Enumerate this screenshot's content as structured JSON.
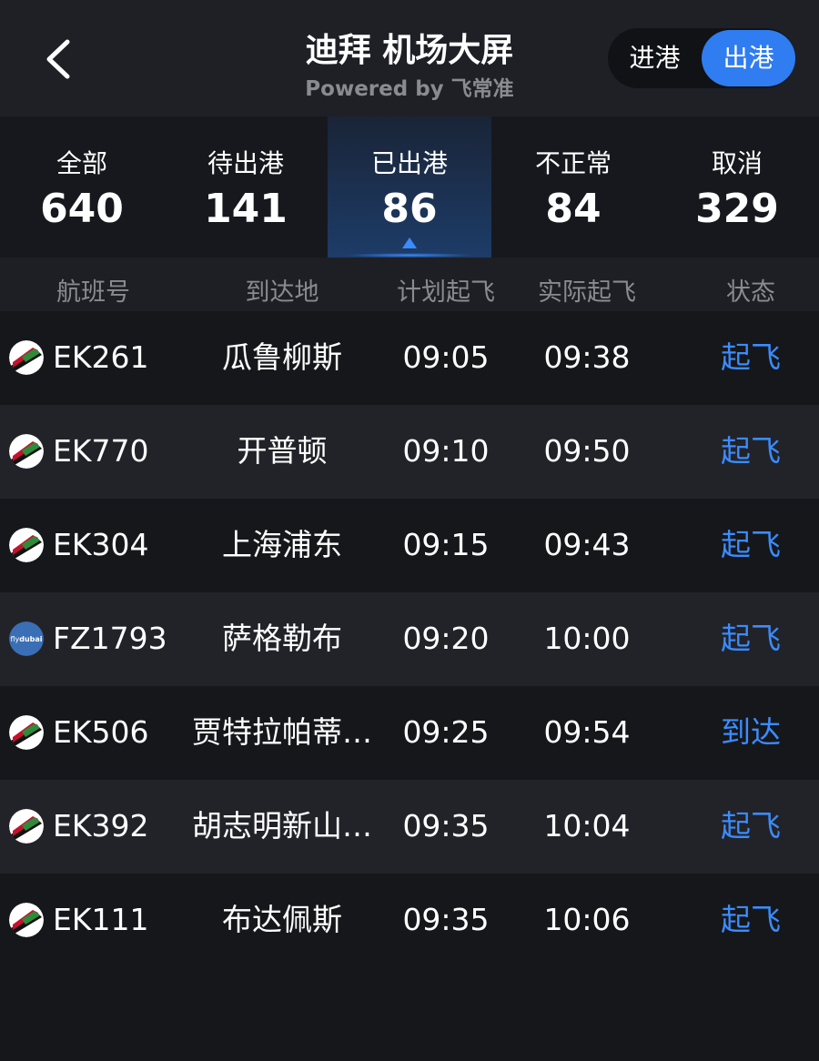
{
  "header": {
    "title": "迪拜 机场大屏",
    "subtitle": "Powered by 飞常准",
    "back_icon": "chevron-left-icon",
    "toggle": [
      "进港",
      "出港"
    ],
    "toggle_selected": "出港",
    "accent": "#2f7df0"
  },
  "stats": [
    {
      "label": "全部",
      "count": "640"
    },
    {
      "label": "待出港",
      "count": "141"
    },
    {
      "label": "已出港",
      "count": "86",
      "selected": true
    },
    {
      "label": "不正常",
      "count": "84"
    },
    {
      "label": "取消",
      "count": "329"
    }
  ],
  "columns": [
    "航班号",
    "到达地",
    "计划起飞",
    "实际起飞",
    "状态"
  ],
  "flights": [
    {
      "airline": "emirates",
      "flight": "EK261",
      "dest": "瓜鲁柳斯",
      "sched": "09:05",
      "actual": "09:38",
      "status": "起飞"
    },
    {
      "airline": "emirates",
      "flight": "EK770",
      "dest": "开普顿",
      "sched": "09:10",
      "actual": "09:50",
      "status": "起飞"
    },
    {
      "airline": "emirates",
      "flight": "EK304",
      "dest": "上海浦东",
      "sched": "09:15",
      "actual": "09:43",
      "status": "起飞"
    },
    {
      "airline": "flydubai",
      "logo_text": "flydubai",
      "flight": "FZ1793",
      "dest": "萨格勒布",
      "sched": "09:20",
      "actual": "10:00",
      "status": "起飞"
    },
    {
      "airline": "emirates",
      "flight": "EK506",
      "dest": "贾特拉帕蒂…",
      "sched": "09:25",
      "actual": "09:54",
      "status": "到达"
    },
    {
      "airline": "emirates",
      "flight": "EK392",
      "dest": "胡志明新山…",
      "sched": "09:35",
      "actual": "10:04",
      "status": "起飞"
    },
    {
      "airline": "emirates",
      "flight": "EK111",
      "dest": "布达佩斯",
      "sched": "09:35",
      "actual": "10:06",
      "status": "起飞"
    }
  ]
}
